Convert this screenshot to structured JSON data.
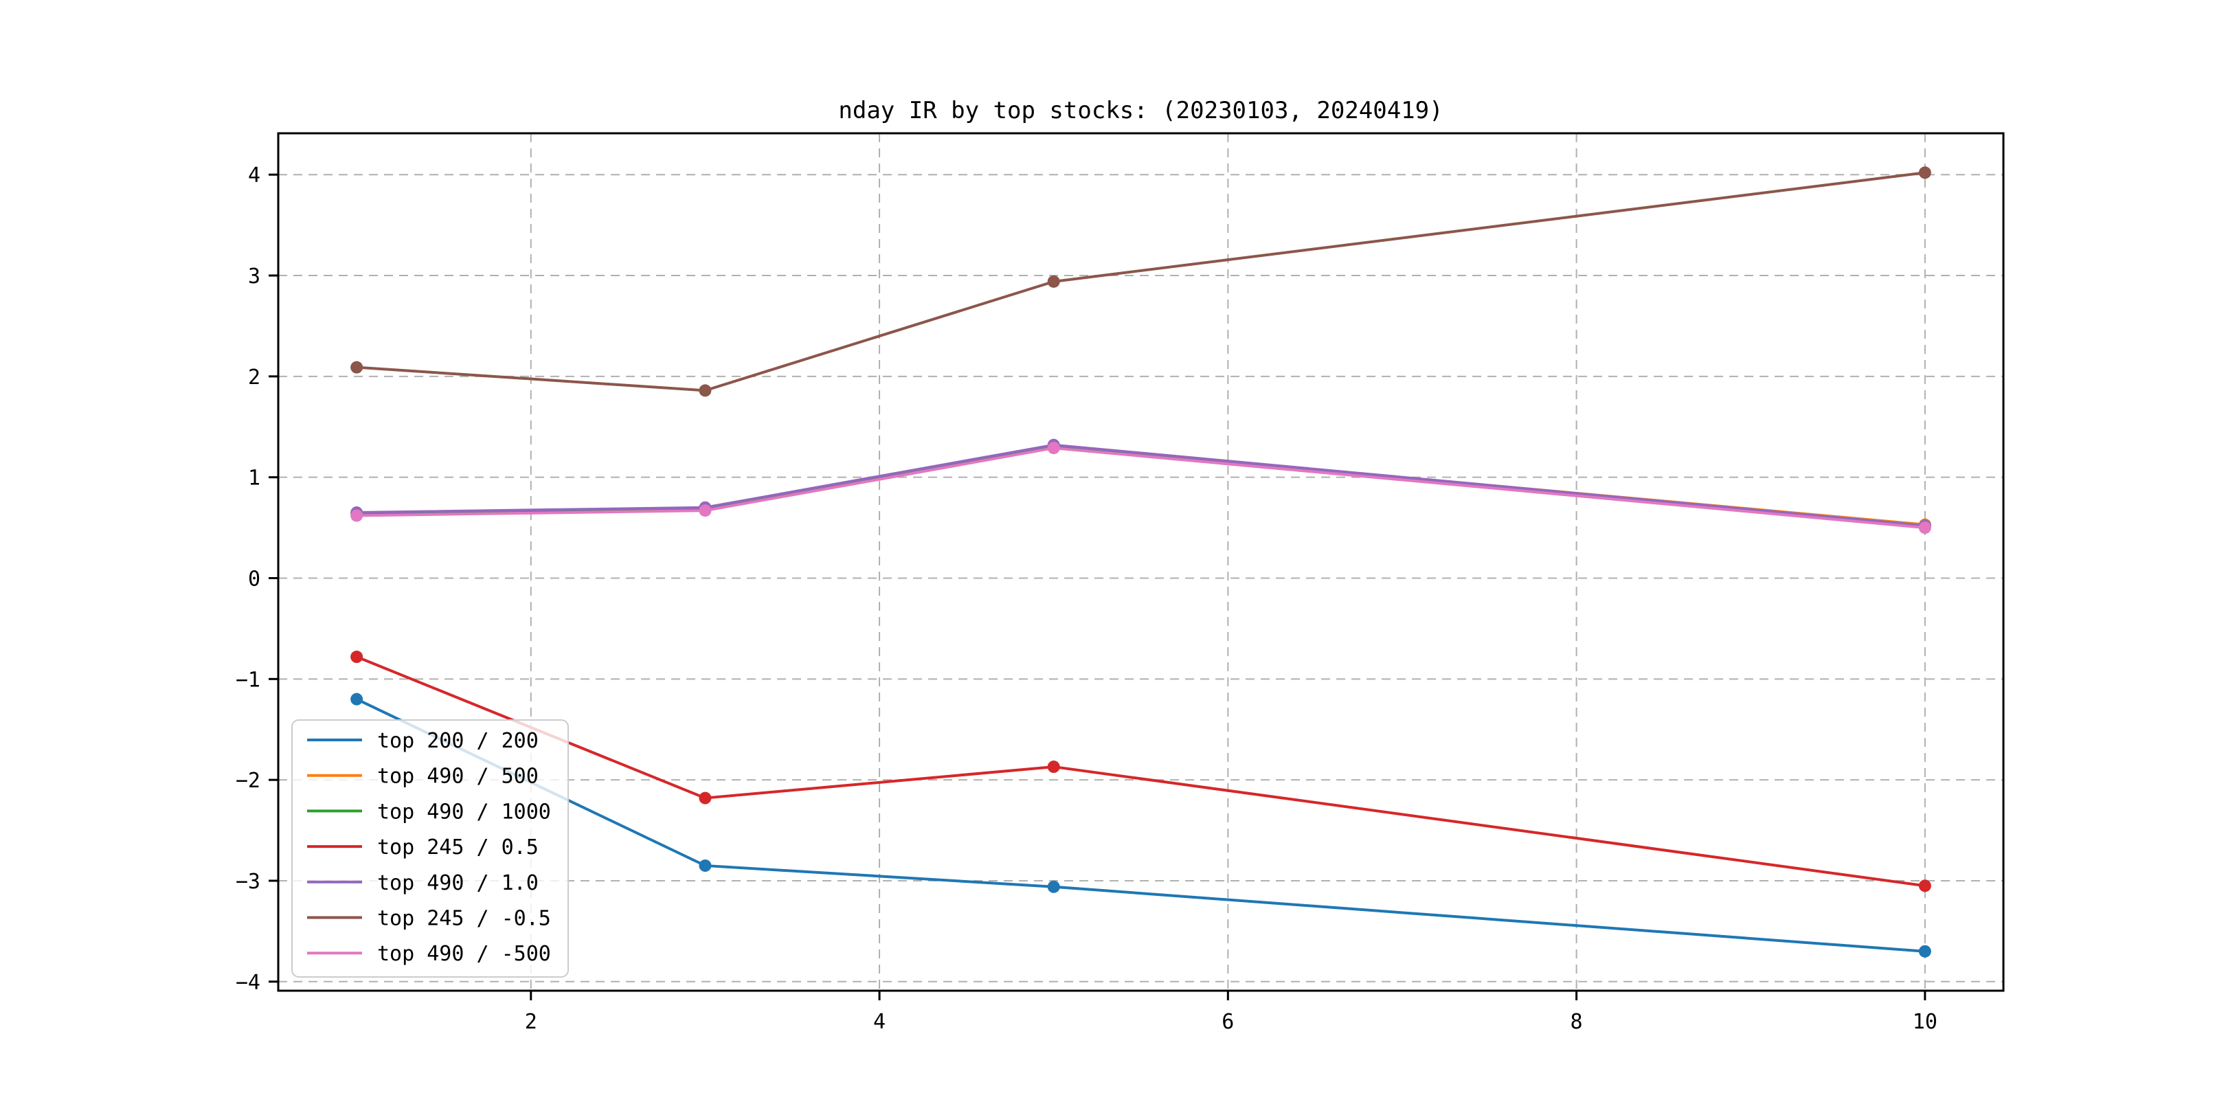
{
  "chart_data": {
    "type": "line",
    "title": "nday IR by top stocks: (20230103, 20240419)",
    "xlabel": "",
    "ylabel": "",
    "x": [
      1,
      3,
      5,
      10
    ],
    "series": [
      {
        "name": "top 200 / 200",
        "color": "#1f77b4",
        "values": [
          -1.2,
          -2.85,
          -3.06,
          -3.7
        ]
      },
      {
        "name": "top 490 / 500",
        "color": "#ff7f0e",
        "values": [
          0.64,
          0.69,
          1.31,
          0.53
        ]
      },
      {
        "name": "top 490 / 1000",
        "color": "#2ca02c",
        "values": [
          0.64,
          0.69,
          1.31,
          0.52
        ]
      },
      {
        "name": "top 245 / 0.5",
        "color": "#d62728",
        "values": [
          -0.78,
          -2.18,
          -1.87,
          -3.05
        ]
      },
      {
        "name": "top 490 / 1.0",
        "color": "#9467bd",
        "values": [
          0.65,
          0.7,
          1.32,
          0.52
        ]
      },
      {
        "name": "top 245 / -0.5",
        "color": "#8c564b",
        "values": [
          2.09,
          1.86,
          2.94,
          4.02
        ]
      },
      {
        "name": "top 490 / -500",
        "color": "#e377c2",
        "values": [
          0.62,
          0.67,
          1.29,
          0.5
        ]
      }
    ],
    "xticks": [
      2,
      4,
      6,
      8,
      10
    ],
    "yticks": [
      -4,
      -3,
      -2,
      -1,
      0,
      1,
      2,
      3,
      4
    ],
    "xlim": [
      0.55,
      10.45
    ],
    "ylim": [
      -4.09,
      4.41
    ],
    "grid": true,
    "grid_style": "dashed",
    "grid_color": "#b0b0b0",
    "legend_position": "lower-left",
    "marker": "circle"
  }
}
